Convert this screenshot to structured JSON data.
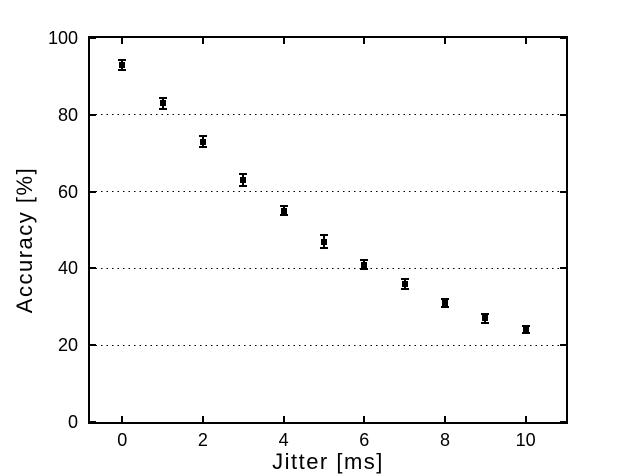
{
  "figure": {
    "background_color": "#ffffff",
    "axes_color": "#000000",
    "marker_color": "#000000"
  },
  "chart_data": {
    "type": "scatter",
    "subtype": "errorbar",
    "title": "",
    "xlabel": "Jitter [ms]",
    "ylabel": "Accuracy [%]",
    "x": [
      0,
      1,
      2,
      3,
      4,
      5,
      6,
      7,
      8,
      9,
      10
    ],
    "y": [
      93,
      83,
      73,
      63,
      55,
      47,
      41,
      36,
      31,
      27,
      24
    ],
    "yerr": [
      1.3,
      1.5,
      1.4,
      1.6,
      1.2,
      1.6,
      1.2,
      1.3,
      1.0,
      1.2,
      0.9
    ],
    "xlim": [
      -0.8,
      11
    ],
    "ylim": [
      0,
      100
    ],
    "xticks": [
      0,
      2,
      4,
      6,
      8,
      10
    ],
    "xtick_labels": [
      "0",
      "2",
      "4",
      "6",
      "8",
      "10"
    ],
    "yticks": [
      0,
      20,
      40,
      60,
      80,
      100
    ],
    "ytick_labels": [
      "0",
      "20",
      "40",
      "60",
      "80",
      "100"
    ],
    "grid_y_values": [
      20,
      40,
      60,
      80
    ],
    "grid_style": "dotted",
    "grid_on_x": false,
    "grid_on_y": true,
    "marker": "filled-square",
    "marker_color": "#000000",
    "line": "none",
    "legend": null
  }
}
